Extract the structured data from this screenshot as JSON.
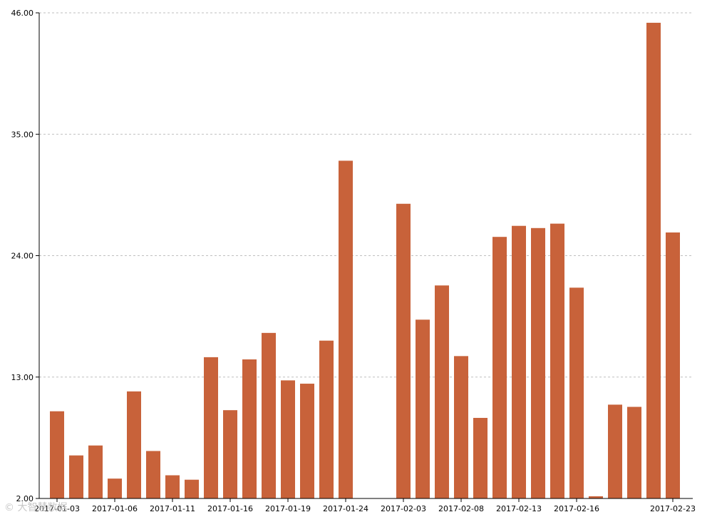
{
  "chart_data": {
    "type": "bar",
    "title": "",
    "xlabel": "",
    "ylabel": "",
    "ylim": [
      2,
      46
    ],
    "y_ticks": [
      2,
      13,
      24,
      35,
      46
    ],
    "y_tick_labels": [
      "2.00",
      "13.00",
      "24.00",
      "35.00",
      "46.00"
    ],
    "grid": "horizontal dashed",
    "bar_color": "#c8623a",
    "categories": [
      "2017-01-03",
      "2017-01-04",
      "2017-01-05",
      "2017-01-06",
      "2017-01-09",
      "2017-01-10",
      "2017-01-11",
      "2017-01-12",
      "2017-01-13",
      "2017-01-16",
      "2017-01-17",
      "2017-01-18",
      "2017-01-19",
      "2017-01-20",
      "2017-01-23",
      "2017-01-24",
      "2017-01-25",
      "2017-01-26",
      "2017-02-03",
      "2017-02-06",
      "2017-02-07",
      "2017-02-08",
      "2017-02-09",
      "2017-02-10",
      "2017-02-13",
      "2017-02-14",
      "2017-02-15",
      "2017-02-16",
      "2017-02-17",
      "2017-02-20",
      "2017-02-21",
      "2017-02-22",
      "2017-02-23"
    ],
    "values": [
      9.9,
      5.9,
      6.8,
      3.8,
      11.7,
      6.3,
      4.1,
      3.7,
      14.8,
      10.0,
      14.6,
      17.0,
      12.7,
      12.4,
      16.3,
      32.6,
      null,
      null,
      28.7,
      18.2,
      21.3,
      14.9,
      9.3,
      25.7,
      26.7,
      26.5,
      26.9,
      21.1,
      2.2,
      10.5,
      10.3,
      45.1,
      26.1
    ],
    "x_tick_labels": [
      {
        "label": "2017-01-03",
        "category": "2017-01-03"
      },
      {
        "label": "2017-01-06",
        "category": "2017-01-06"
      },
      {
        "label": "2017-01-11",
        "category": "2017-01-11"
      },
      {
        "label": "2017-01-16",
        "category": "2017-01-16"
      },
      {
        "label": "2017-01-19",
        "category": "2017-01-19"
      },
      {
        "label": "2017-01-24",
        "category": "2017-01-24"
      },
      {
        "label": "2017-02-03",
        "category": "2017-02-03"
      },
      {
        "label": "2017-02-08",
        "category": "2017-02-08"
      },
      {
        "label": "2017-02-13",
        "category": "2017-02-13"
      },
      {
        "label": "2017-02-16",
        "category": "2017-02-16"
      },
      {
        "label": "2017-02-23",
        "category": "2017-02-23"
      }
    ]
  },
  "watermark": "© 大智慧数据"
}
